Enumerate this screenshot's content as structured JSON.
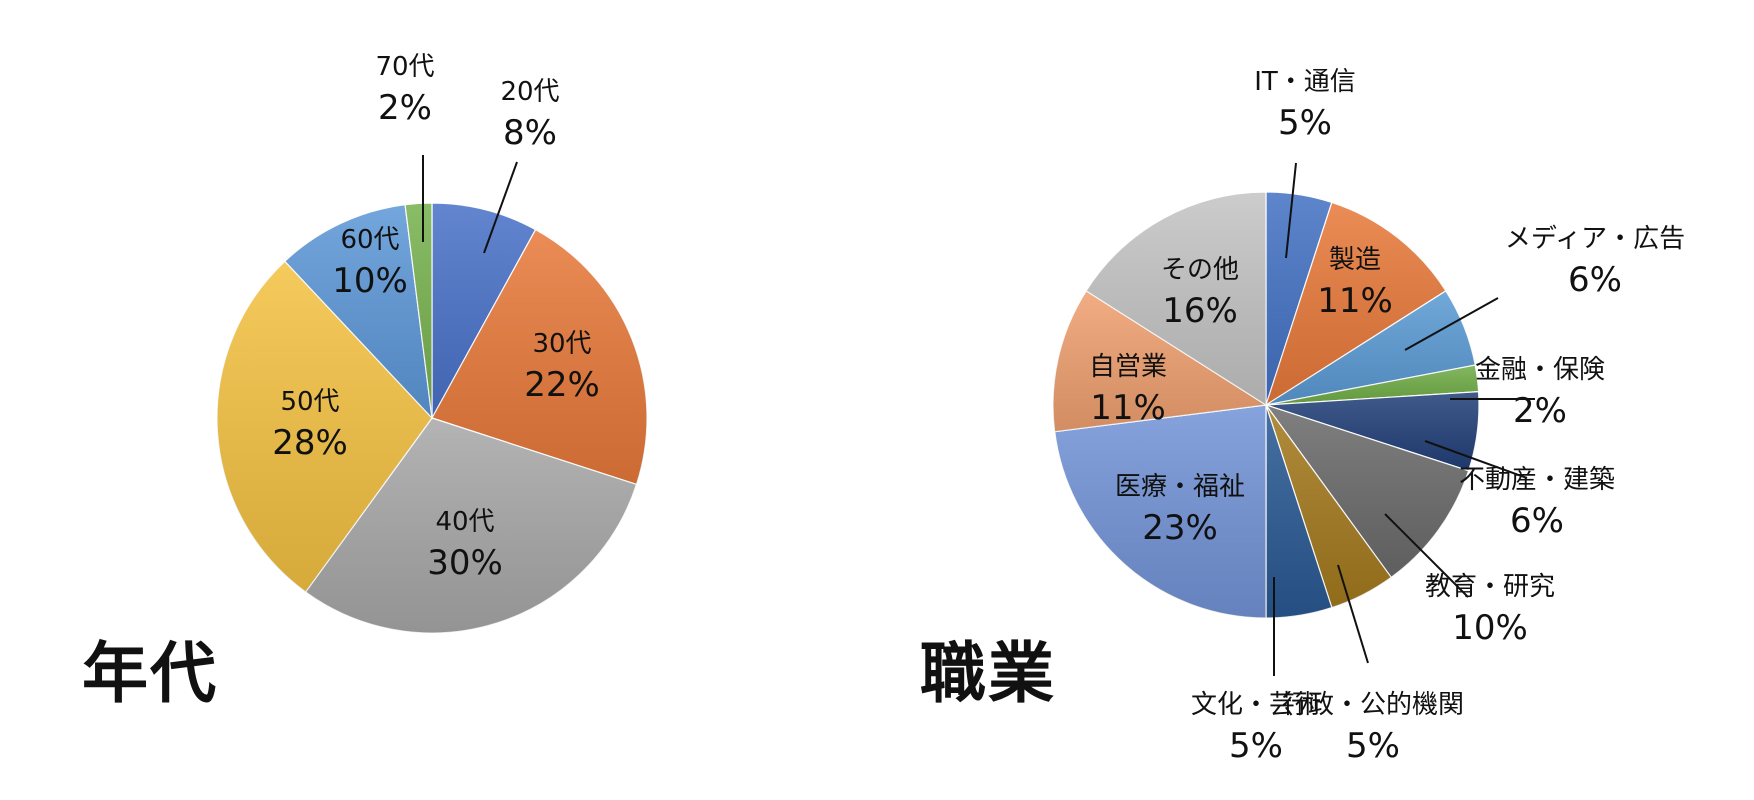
{
  "chart_data": [
    {
      "type": "pie",
      "title": "年代",
      "start": "top",
      "direction": "clockwise",
      "slices": [
        {
          "label": "20代",
          "value": 8,
          "pct": "8%",
          "color": "#4a72c9"
        },
        {
          "label": "30代",
          "value": 22,
          "pct": "22%",
          "color": "#e8793a"
        },
        {
          "label": "40代",
          "value": 30,
          "pct": "30%",
          "color": "#a8a8a8"
        },
        {
          "label": "50代",
          "value": 28,
          "pct": "28%",
          "color": "#f4c242"
        },
        {
          "label": "60代",
          "value": 10,
          "pct": "10%",
          "color": "#5d98d8"
        },
        {
          "label": "70代",
          "value": 2,
          "pct": "2%",
          "color": "#77b24e"
        }
      ]
    },
    {
      "type": "pie",
      "title": "職業",
      "start": "top",
      "direction": "clockwise",
      "slices": [
        {
          "label": "IT・通信",
          "value": 5,
          "pct": "5%",
          "color": "#4472c4"
        },
        {
          "label": "製造",
          "value": 11,
          "pct": "11%",
          "color": "#e8793a"
        },
        {
          "label": "メディア・広告",
          "value": 6,
          "pct": "6%",
          "color": "#5b9bd5"
        },
        {
          "label": "金融・保険",
          "value": 2,
          "pct": "2%",
          "color": "#70ad47"
        },
        {
          "label": "不動産・建築",
          "value": 6,
          "pct": "6%",
          "color": "#23407a"
        },
        {
          "label": "教育・研究",
          "value": 10,
          "pct": "10%",
          "color": "#6b6b6b"
        },
        {
          "label": "行政・公的機関",
          "value": 5,
          "pct": "5%",
          "color": "#a47a1e"
        },
        {
          "label": "文化・芸術",
          "value": 5,
          "pct": "5%",
          "color": "#2a5a94"
        },
        {
          "label": "医療・福祉",
          "value": 23,
          "pct": "23%",
          "color": "#7394d8"
        },
        {
          "label": "自営業",
          "value": 11,
          "pct": "11%",
          "color": "#f0a070"
        },
        {
          "label": "その他",
          "value": 16,
          "pct": "16%",
          "color": "#c4c4c4"
        }
      ]
    }
  ]
}
